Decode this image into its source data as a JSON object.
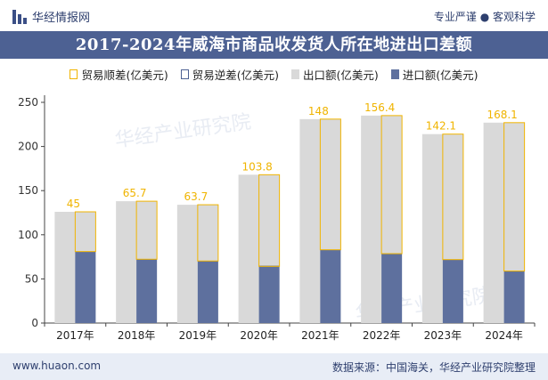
{
  "header": {
    "logo_text": "华经情报网",
    "tagline": "专业严谨 ● 客观科学"
  },
  "title": "2017-2024年威海市商品收发货人所在地进出口差额",
  "legend": [
    {
      "label": "贸易顺差(亿美元)",
      "color": "#f0b400",
      "style": "outline"
    },
    {
      "label": "贸易逆差(亿美元)",
      "color": "#4d6193",
      "style": "outline"
    },
    {
      "label": "出口额(亿美元)",
      "color": "#d9d9d9",
      "style": "fill"
    },
    {
      "label": "进口额(亿美元)",
      "color": "#5e709e",
      "style": "fill"
    }
  ],
  "chart_data": {
    "type": "bar",
    "categories": [
      "2017年",
      "2018年",
      "2019年",
      "2020年",
      "2021年",
      "2022年",
      "2023年",
      "2024年"
    ],
    "series": [
      {
        "name": "出口额(亿美元)",
        "values": [
          126,
          138,
          134,
          168,
          231,
          235,
          214,
          227
        ]
      },
      {
        "name": "进口额(亿美元)",
        "values": [
          81,
          72,
          70,
          65,
          83,
          79,
          72,
          59
        ]
      },
      {
        "name": "贸易顺差(亿美元)",
        "values": [
          45,
          65.7,
          63.7,
          103.8,
          148,
          156.4,
          142.1,
          168.1
        ]
      }
    ],
    "ylim": [
      0,
      250
    ],
    "yticks": [
      0,
      50,
      100,
      150,
      200,
      250
    ],
    "grid": false
  },
  "watermark": "华经产业研究院",
  "footer": {
    "website": "www.huaon.com",
    "source": "数据来源：中国海关，华经产业研究院整理"
  }
}
